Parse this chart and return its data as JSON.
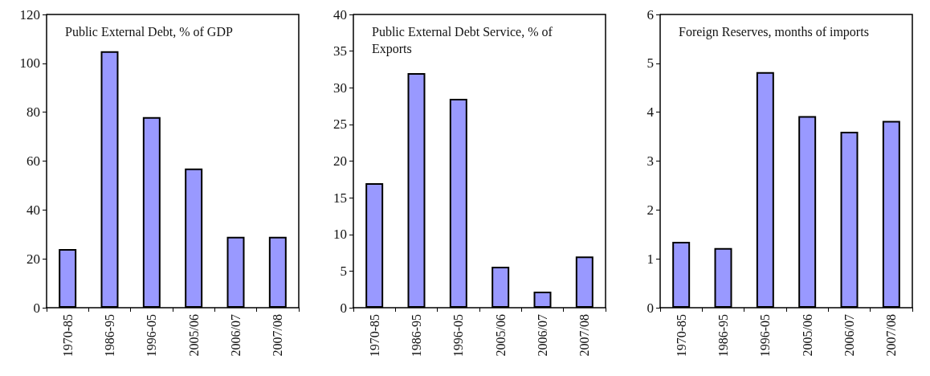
{
  "chart_data": [
    {
      "type": "bar",
      "title": "Public External Debt, % of GDP",
      "categories": [
        "1970-85",
        "1986-95",
        "1996-05",
        "2005/06",
        "2006/07",
        "2007/08"
      ],
      "values": [
        24,
        105,
        78,
        57,
        29,
        29
      ],
      "color": "#9999ff",
      "ylim": [
        0,
        120
      ],
      "yticks": [
        0,
        20,
        40,
        60,
        80,
        100,
        120
      ],
      "grid": false
    },
    {
      "type": "bar",
      "title": "Public External Debt Service, % of Exports",
      "categories": [
        "1970-85",
        "1986-95",
        "1996-05",
        "2005/06",
        "2006/07",
        "2007/08"
      ],
      "values": [
        17,
        32,
        28.5,
        5.6,
        2.2,
        7
      ],
      "color": "#9999ff",
      "ylim": [
        0,
        40
      ],
      "yticks": [
        0,
        5,
        10,
        15,
        20,
        25,
        30,
        35,
        40
      ],
      "grid": false
    },
    {
      "type": "bar",
      "title": "Foreign Reserves, months of imports",
      "categories": [
        "1970-85",
        "1986-95",
        "1996-05",
        "2005/06",
        "2006/07",
        "2007/08"
      ],
      "values": [
        1.35,
        1.22,
        4.82,
        3.92,
        3.6,
        3.82
      ],
      "color": "#9999ff",
      "ylim": [
        0,
        6
      ],
      "yticks": [
        0,
        1,
        2,
        3,
        4,
        5,
        6
      ],
      "grid": false
    }
  ]
}
